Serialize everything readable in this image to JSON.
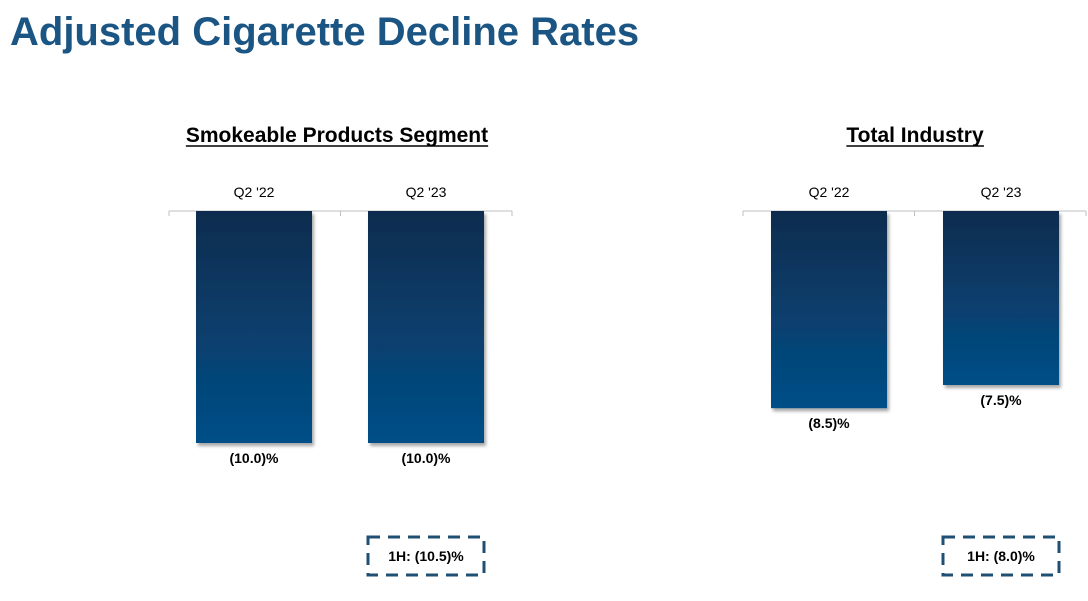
{
  "page": {
    "title": "Adjusted Cigarette Decline Rates"
  },
  "colors": {
    "title": "#1b5584",
    "bar_top": "#0b2c4e",
    "bar_bottom": "#044f88",
    "note_border": "#1f4f73",
    "axis": "#bfbfbf"
  },
  "chart_data": [
    {
      "type": "bar",
      "title": "Smokeable Products Segment",
      "categories": [
        "Q2 '22",
        "Q2 '23"
      ],
      "values": [
        -10.0,
        -10.0
      ],
      "value_labels": [
        "(10.0)%",
        "(10.0)%"
      ],
      "ylim": [
        -10.0,
        0
      ],
      "xlabel": "",
      "ylabel": "",
      "axis_position": "top",
      "grid": false,
      "note": "1H: (10.5)%"
    },
    {
      "type": "bar",
      "title": "Total Industry",
      "categories": [
        "Q2 '22",
        "Q2 '23"
      ],
      "values": [
        -8.5,
        -7.5
      ],
      "value_labels": [
        "(8.5)%",
        "(7.5)%"
      ],
      "ylim": [
        -10.0,
        0
      ],
      "xlabel": "",
      "ylabel": "",
      "axis_position": "top",
      "grid": false,
      "note": "1H: (8.0)%"
    }
  ]
}
